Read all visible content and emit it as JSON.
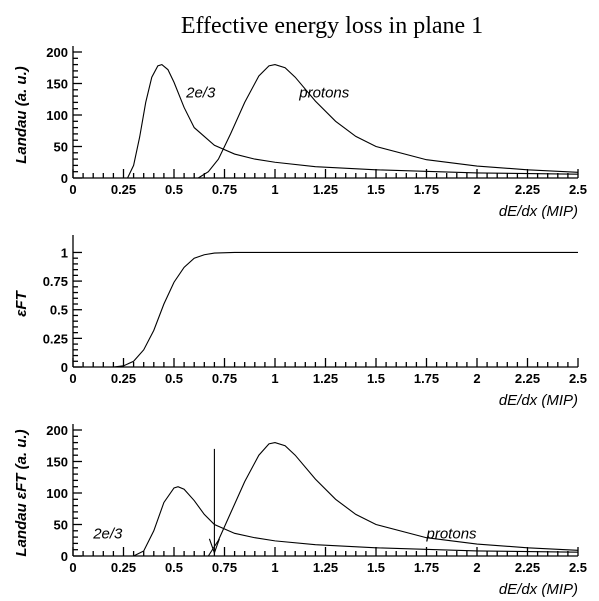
{
  "figure_title": "Effective energy loss in plane 1",
  "chart_data": [
    {
      "type": "line",
      "ylabel": "Landau (a. u.)",
      "xlabel": "dE/dx (MIP)",
      "xlim": [
        0,
        2.5
      ],
      "ylim": [
        0,
        200
      ],
      "x_ticks": [
        "0",
        "0.25",
        "0.5",
        "0.75",
        "1",
        "1.25",
        "1.5",
        "1.75",
        "2",
        "2.25",
        "2.5"
      ],
      "y_ticks": [
        "0",
        "50",
        "100",
        "150",
        "200"
      ],
      "series": [
        {
          "name": "2e/3",
          "x": [
            0.27,
            0.3,
            0.33,
            0.36,
            0.39,
            0.42,
            0.44,
            0.47,
            0.5,
            0.55,
            0.6,
            0.7,
            0.8,
            0.9,
            1.0,
            1.2,
            1.5,
            2.0,
            2.5
          ],
          "y": [
            0,
            20,
            65,
            120,
            160,
            178,
            180,
            172,
            152,
            112,
            80,
            52,
            38,
            30,
            25,
            18,
            13,
            8,
            6
          ]
        },
        {
          "name": "protons",
          "x": [
            0.62,
            0.67,
            0.72,
            0.78,
            0.85,
            0.92,
            0.97,
            1.0,
            1.05,
            1.1,
            1.2,
            1.3,
            1.4,
            1.5,
            1.75,
            2.0,
            2.25,
            2.5
          ],
          "y": [
            0,
            10,
            30,
            70,
            120,
            162,
            178,
            180,
            175,
            160,
            122,
            90,
            66,
            50,
            29,
            19,
            13,
            9
          ]
        }
      ],
      "annotations": [
        {
          "text": "2e/3",
          "x": 0.56,
          "y": 128
        },
        {
          "text": "protons",
          "x": 1.12,
          "y": 128
        }
      ]
    },
    {
      "type": "line",
      "ylabel": "εFT",
      "xlabel": "dE/dx (MIP)",
      "xlim": [
        0,
        2.5
      ],
      "ylim": [
        0,
        1.1
      ],
      "x_ticks": [
        "0",
        "0.25",
        "0.5",
        "0.75",
        "1",
        "1.25",
        "1.5",
        "1.75",
        "2",
        "2.25",
        "2.5"
      ],
      "y_ticks": [
        "0",
        "0.25",
        "0.5",
        "0.75",
        "1"
      ],
      "series": [
        {
          "name": "",
          "x": [
            0.2,
            0.25,
            0.3,
            0.35,
            0.4,
            0.45,
            0.5,
            0.55,
            0.6,
            0.65,
            0.7,
            0.8,
            1.0,
            1.5,
            2.0,
            2.5
          ],
          "y": [
            0,
            0.01,
            0.05,
            0.15,
            0.32,
            0.55,
            0.74,
            0.87,
            0.95,
            0.98,
            0.995,
            1,
            1,
            1,
            1,
            1
          ]
        }
      ]
    },
    {
      "type": "line",
      "ylabel": "Landau εFT (a. u.)",
      "xlabel": "dE/dx (MIP)",
      "xlim": [
        0,
        2.5
      ],
      "ylim": [
        0,
        200
      ],
      "x_ticks": [
        "0",
        "0.25",
        "0.5",
        "0.75",
        "1",
        "1.25",
        "1.5",
        "1.75",
        "2",
        "2.25",
        "2.5"
      ],
      "y_ticks": [
        "0",
        "50",
        "100",
        "150",
        "200"
      ],
      "series": [
        {
          "name": "2e/3",
          "x": [
            0.3,
            0.35,
            0.4,
            0.45,
            0.5,
            0.52,
            0.55,
            0.6,
            0.65,
            0.7,
            0.8,
            0.9,
            1.0,
            1.2,
            1.5,
            2.0,
            2.5
          ],
          "y": [
            0,
            8,
            40,
            85,
            108,
            110,
            106,
            88,
            66,
            50,
            36,
            29,
            24,
            18,
            13,
            8,
            6
          ]
        },
        {
          "name": "protons",
          "x": [
            0.67,
            0.72,
            0.78,
            0.85,
            0.92,
            0.97,
            1.0,
            1.05,
            1.1,
            1.2,
            1.3,
            1.4,
            1.5,
            1.75,
            2.0,
            2.25,
            2.5
          ],
          "y": [
            0,
            25,
            68,
            118,
            160,
            178,
            180,
            175,
            160,
            122,
            90,
            66,
            50,
            29,
            19,
            13,
            9
          ]
        }
      ],
      "annotations": [
        {
          "text": "2e/3",
          "x": 0.1,
          "y": 28
        },
        {
          "text": "protons",
          "x": 1.75,
          "y": 28
        }
      ],
      "arrow": {
        "x": 0.7,
        "y_from": 170,
        "y_to": 5
      }
    }
  ]
}
